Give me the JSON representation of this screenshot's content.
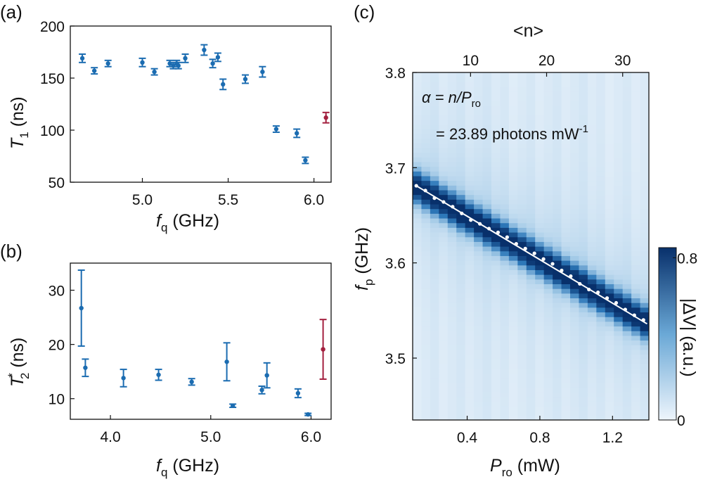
{
  "colors": {
    "blue": "#1b6cb1",
    "red": "#a3203f",
    "heat_low": "#eef5fc",
    "heat_high": "#08306b",
    "fit_line": "#ffffff"
  },
  "chart_data": [
    {
      "panel": "(a)",
      "type": "scatter",
      "xlabel_main": "f",
      "xlabel_sub": "q",
      "xlabel_unit": " (GHz)",
      "ylabel_main": "T",
      "ylabel_sub": "1",
      "ylabel_unit": " (ns)",
      "xlim": [
        4.58,
        6.1
      ],
      "ylim": [
        50,
        200
      ],
      "xticks": [
        "5.0",
        "5.5",
        "6.0"
      ],
      "xtick_values": [
        5.0,
        5.5,
        6.0
      ],
      "yticks": [
        "50",
        "100",
        "150",
        "200"
      ],
      "ytick_values": [
        50,
        100,
        150,
        200
      ],
      "series": [
        {
          "name": "blue",
          "color": "blue",
          "points": [
            {
              "x": 4.65,
              "y": 169,
              "err": 4
            },
            {
              "x": 4.72,
              "y": 157,
              "err": 3
            },
            {
              "x": 4.8,
              "y": 164,
              "err": 3
            },
            {
              "x": 5.0,
              "y": 165,
              "err": 4
            },
            {
              "x": 5.07,
              "y": 156,
              "err": 3
            },
            {
              "x": 5.16,
              "y": 164,
              "err": 3
            },
            {
              "x": 5.18,
              "y": 162,
              "err": 3
            },
            {
              "x": 5.2,
              "y": 164,
              "err": 3
            },
            {
              "x": 5.21,
              "y": 162,
              "err": 3
            },
            {
              "x": 5.25,
              "y": 169,
              "err": 4
            },
            {
              "x": 5.36,
              "y": 177,
              "err": 5
            },
            {
              "x": 5.41,
              "y": 164,
              "err": 4
            },
            {
              "x": 5.44,
              "y": 170,
              "err": 4
            },
            {
              "x": 5.47,
              "y": 144,
              "err": 5
            },
            {
              "x": 5.6,
              "y": 149,
              "err": 4
            },
            {
              "x": 5.7,
              "y": 156,
              "err": 5
            },
            {
              "x": 5.78,
              "y": 101,
              "err": 3
            },
            {
              "x": 5.9,
              "y": 97,
              "err": 4
            },
            {
              "x": 5.95,
              "y": 71,
              "err": 3
            }
          ]
        },
        {
          "name": "red",
          "color": "red",
          "points": [
            {
              "x": 6.07,
              "y": 112,
              "err": 5
            }
          ]
        }
      ]
    },
    {
      "panel": "(b)",
      "type": "scatter",
      "xlabel_main": "f",
      "xlabel_sub": "q",
      "xlabel_unit": " (GHz)",
      "ylabel_main": "T",
      "ylabel_sup": "*",
      "ylabel_sub": "2",
      "ylabel_unit": " (ns)",
      "xlim": [
        3.6,
        6.2
      ],
      "ylim": [
        6.2,
        35
      ],
      "xticks": [
        "4.0",
        "5.0",
        "6.0"
      ],
      "xtick_values": [
        4.0,
        5.0,
        6.0
      ],
      "yticks": [
        "10",
        "20",
        "30"
      ],
      "ytick_values": [
        10,
        20,
        30
      ],
      "series": [
        {
          "name": "blue",
          "color": "blue",
          "points": [
            {
              "x": 3.71,
              "y": 26.7,
              "errlo": 7.0,
              "errhi": 7.0
            },
            {
              "x": 3.75,
              "y": 15.7,
              "errlo": 1.6,
              "errhi": 1.6
            },
            {
              "x": 4.13,
              "y": 13.8,
              "errlo": 1.6,
              "errhi": 1.6
            },
            {
              "x": 4.48,
              "y": 14.4,
              "errlo": 1.0,
              "errhi": 1.0
            },
            {
              "x": 4.81,
              "y": 13.1,
              "errlo": 0.6,
              "errhi": 0.6
            },
            {
              "x": 5.16,
              "y": 16.8,
              "errlo": 3.5,
              "errhi": 3.5
            },
            {
              "x": 5.22,
              "y": 8.7,
              "errlo": 0.3,
              "errhi": 0.3
            },
            {
              "x": 5.51,
              "y": 11.6,
              "errlo": 0.7,
              "errhi": 0.7
            },
            {
              "x": 5.56,
              "y": 14.3,
              "errlo": 2.3,
              "errhi": 2.3
            },
            {
              "x": 5.87,
              "y": 11.0,
              "errlo": 0.8,
              "errhi": 0.8
            },
            {
              "x": 5.97,
              "y": 7.1,
              "errlo": 0.2,
              "errhi": 0.2
            }
          ]
        },
        {
          "name": "red",
          "color": "red",
          "points": [
            {
              "x": 6.12,
              "y": 19.1,
              "errlo": 5.5,
              "errhi": 5.5
            }
          ]
        }
      ]
    },
    {
      "panel": "(c)",
      "type": "heatmap",
      "xlabel_main": "P",
      "xlabel_sub": "ro",
      "xlabel_unit": " (mW)",
      "ylabel_main": "f",
      "ylabel_sub": "p",
      "ylabel_unit": " (GHz)",
      "top_axis_label": "<n>",
      "xlim": [
        0.1,
        1.4
      ],
      "ylim": [
        3.435,
        3.8
      ],
      "xticks": [
        "0.4",
        "0.8",
        "1.2"
      ],
      "xtick_values": [
        0.4,
        0.8,
        1.2
      ],
      "yticks": [
        "3.5",
        "3.6",
        "3.7",
        "3.8"
      ],
      "ytick_values": [
        3.5,
        3.6,
        3.7,
        3.8
      ],
      "top_xticks": [
        "10",
        "20",
        "30"
      ],
      "top_xtick_values": [
        10,
        20,
        30
      ],
      "photons_per_mW": 23.89,
      "annotation_line1": "α = n/P",
      "annotation_line1_sub": "ro",
      "annotation_line2": "= 23.89 photons mW",
      "annotation_line2_sup": "-1",
      "resonance_start": {
        "x": 0.1,
        "y": 3.682
      },
      "resonance_end": {
        "x": 1.4,
        "y": 3.535
      },
      "columns": 27,
      "fit_line": {
        "x0": 0.12,
        "y0": 3.681,
        "x1": 1.39,
        "y1": 3.536
      },
      "measured_points": [
        {
          "x": 0.12,
          "y": 3.681
        },
        {
          "x": 0.17,
          "y": 3.676
        },
        {
          "x": 0.22,
          "y": 3.668
        },
        {
          "x": 0.27,
          "y": 3.664
        },
        {
          "x": 0.32,
          "y": 3.659
        },
        {
          "x": 0.37,
          "y": 3.652
        },
        {
          "x": 0.42,
          "y": 3.645
        },
        {
          "x": 0.47,
          "y": 3.641
        },
        {
          "x": 0.52,
          "y": 3.636
        },
        {
          "x": 0.57,
          "y": 3.632
        },
        {
          "x": 0.62,
          "y": 3.627
        },
        {
          "x": 0.67,
          "y": 3.62
        },
        {
          "x": 0.72,
          "y": 3.615
        },
        {
          "x": 0.77,
          "y": 3.61
        },
        {
          "x": 0.82,
          "y": 3.604
        },
        {
          "x": 0.87,
          "y": 3.599
        },
        {
          "x": 0.92,
          "y": 3.592
        },
        {
          "x": 0.97,
          "y": 3.586
        },
        {
          "x": 1.02,
          "y": 3.578
        },
        {
          "x": 1.07,
          "y": 3.572
        },
        {
          "x": 1.12,
          "y": 3.569
        },
        {
          "x": 1.17,
          "y": 3.563
        },
        {
          "x": 1.22,
          "y": 3.558
        },
        {
          "x": 1.27,
          "y": 3.551
        },
        {
          "x": 1.32,
          "y": 3.545
        },
        {
          "x": 1.37,
          "y": 3.54
        }
      ],
      "colorbar": {
        "label": "|ΔV| (a.u.)",
        "min": 0,
        "max": 0.85,
        "ticks": [
          "0",
          "0.8"
        ],
        "tick_values": [
          0,
          0.8
        ]
      }
    }
  ]
}
